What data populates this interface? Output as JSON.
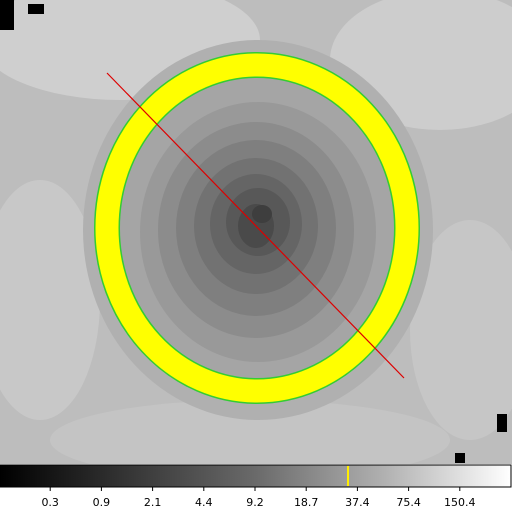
{
  "colorbar": {
    "ticks": [
      0.3,
      0.9,
      2.1,
      4.4,
      9.2,
      18.7,
      37.4,
      75.4,
      150.4
    ]
  }
}
